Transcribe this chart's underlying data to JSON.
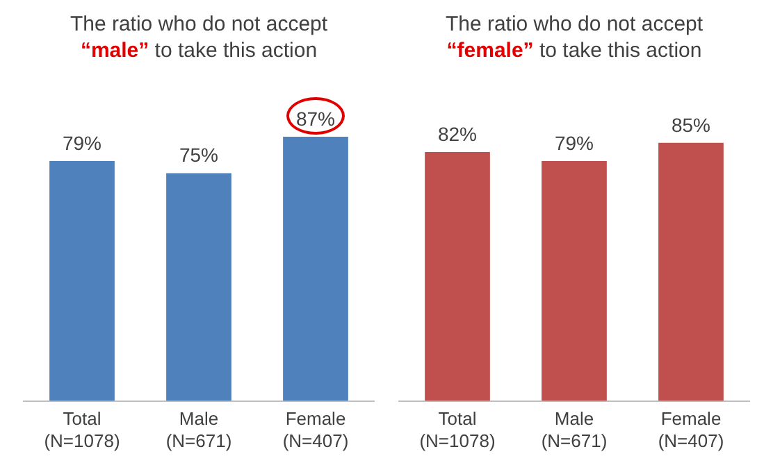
{
  "chart_data": [
    {
      "type": "bar",
      "title": "The ratio who do not accept “male” to take this action",
      "categories": [
        "Total\n(N=1078)",
        "Male\n(N=671)",
        "Female\n(N=407)"
      ],
      "values": [
        79,
        75,
        87
      ],
      "value_labels": [
        "79%",
        "75%",
        "87%"
      ],
      "color": "#4f81bd",
      "tick_labels": "x",
      "grid": false,
      "legend": false
    },
    {
      "type": "bar",
      "title": "The ratio who do not accept “female” to take this action",
      "categories": [
        "Total\n(N=1078)",
        "Male\n(N=671)",
        "Female\n(N=407)"
      ],
      "values": [
        82,
        79,
        85
      ],
      "value_labels": [
        "82%",
        "79%",
        "85%"
      ],
      "color": "#c0504d",
      "tick_labels": "x",
      "grid": false,
      "legend": false
    }
  ]
}
